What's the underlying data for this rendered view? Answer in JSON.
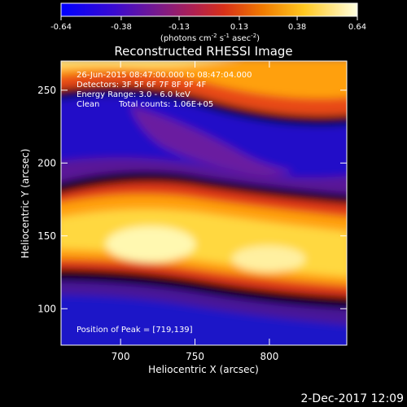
{
  "chart_data": {
    "type": "heatmap",
    "title": "Reconstructed RHESSI Image",
    "xlabel": "Heliocentric X (arcsec)",
    "ylabel": "Heliocentric Y (arcsec)",
    "xlim": [
      660,
      852
    ],
    "ylim": [
      75,
      270
    ],
    "x_ticks": [
      700,
      750,
      800
    ],
    "y_ticks": [
      100,
      150,
      200,
      250
    ],
    "colorbar": {
      "min": -0.64,
      "max": 0.64,
      "ticks": [
        "-0.64",
        "-0.38",
        "-0.13",
        "0.13",
        "0.38",
        "0.64"
      ],
      "units_prefix": "(photons cm",
      "units_exp1": "-2",
      "units_mid": " s",
      "units_exp2": "-1",
      "units_mid2": " asec",
      "units_exp3": "-2",
      "units_suffix": ")"
    },
    "annotations": {
      "time_range": "26-Jun-2015 08:47:00.000 to 08:47:04.000",
      "detectors": "Detectors: 3F 5F 6F 7F 8F 9F 4F",
      "energy_range": "Energy Range: 3.0 - 6.0 keV",
      "clean_label": "Clean",
      "total_counts": "Total counts: 1.06E+05",
      "peak": "Position of Peak = [719,139]"
    },
    "peak_position": [
      719,
      139
    ],
    "footer_date": "2-Dec-2017 12:09"
  }
}
